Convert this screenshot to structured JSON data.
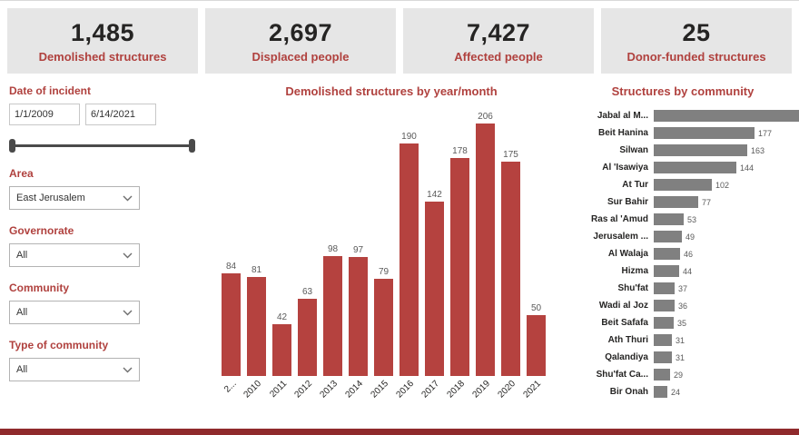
{
  "kpis": [
    {
      "value": "1,485",
      "label": "Demolished structures"
    },
    {
      "value": "2,697",
      "label": "Displaced people"
    },
    {
      "value": "7,427",
      "label": "Affected people"
    },
    {
      "value": "25",
      "label": "Donor-funded structures"
    }
  ],
  "filters": {
    "date_label": "Date of incident",
    "date_start": "1/1/2009",
    "date_end": "6/14/2021",
    "area_label": "Area",
    "area_value": "East Jerusalem",
    "governorate_label": "Governorate",
    "governorate_value": "All",
    "community_label": "Community",
    "community_value": "All",
    "type_label": "Type of community",
    "type_value": "All"
  },
  "chart_data": [
    {
      "type": "bar",
      "orientation": "vertical",
      "title": "Demolished structures by year/month",
      "categories": [
        "2...",
        "2010",
        "2011",
        "2012",
        "2013",
        "2014",
        "2015",
        "2016",
        "2017",
        "2018",
        "2019",
        "2020",
        "2021"
      ],
      "values": [
        84,
        81,
        42,
        63,
        98,
        97,
        79,
        190,
        142,
        178,
        206,
        175,
        50
      ],
      "bar_color": "#b5423f",
      "ylim": [
        0,
        206
      ],
      "grid": false,
      "data_labels": true
    },
    {
      "type": "bar",
      "orientation": "horizontal",
      "title": "Structures by community",
      "categories": [
        "Jabal al M...",
        "Beit Hanina",
        "Silwan",
        "Al 'Isawiya",
        "At Tur",
        "Sur Bahir",
        "Ras al 'Amud",
        "Jerusalem ...",
        "Al Walaja",
        "Hizma",
        "Shu'fat",
        "Wadi al Joz",
        "Beit Safafa",
        "Ath Thuri",
        "Qalandiya",
        "Shu'fat Ca...",
        "Bir Onah"
      ],
      "values": [
        254,
        177,
        163,
        144,
        102,
        77,
        53,
        49,
        46,
        44,
        37,
        36,
        35,
        31,
        31,
        29,
        24
      ],
      "bar_color": "#808080",
      "xlim": [
        0,
        254
      ],
      "grid": false,
      "data_labels": true
    }
  ],
  "colors": {
    "accent": "#b0413e",
    "kpi_background": "#e6e6e6",
    "column_bar": "#b5423f",
    "community_bar": "#808080",
    "scrollbar": "#8f2a2c"
  }
}
